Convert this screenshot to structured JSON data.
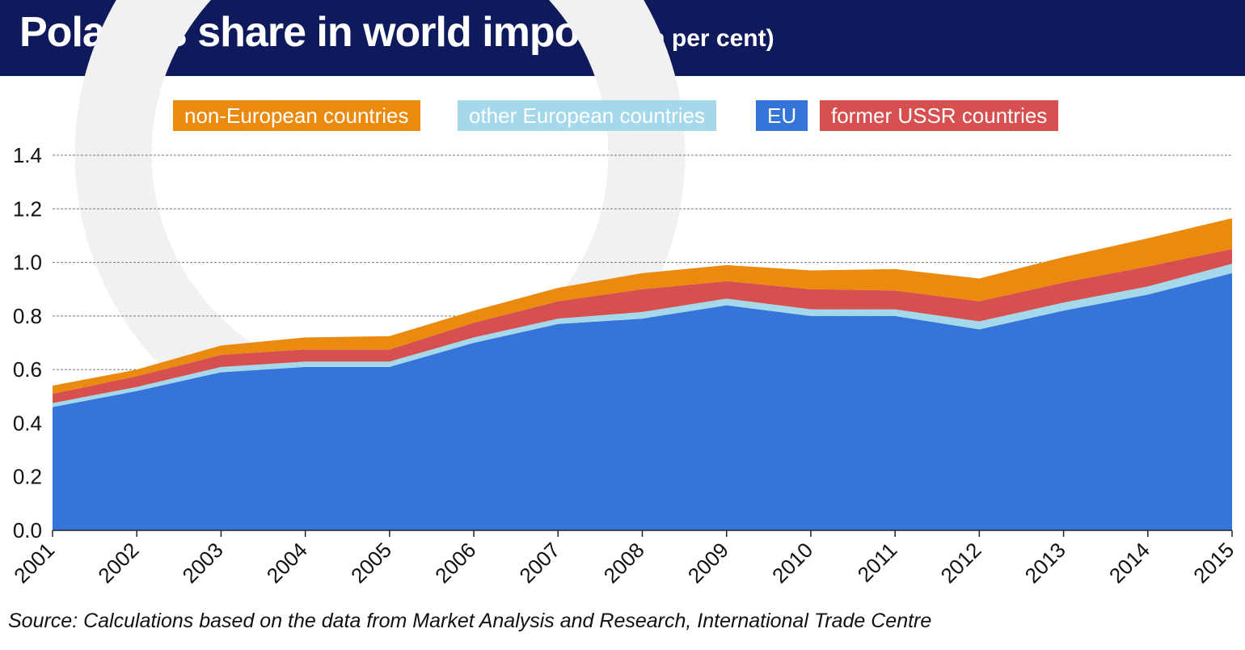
{
  "header": {
    "title": "Poland’s share in world imports",
    "subtitle": "(in per cent)"
  },
  "source_note": "Source: Calculations based on the data from Market Analysis and Research, International Trade Centre",
  "colors": {
    "header_bg": "#0e1a5c",
    "eu": "#3574d9",
    "other_europe": "#a4d8ea",
    "former_ussr": "#d5504e",
    "non_europe": "#ea8a0e"
  },
  "chart_data": {
    "type": "area",
    "stacked": true,
    "title": "Poland’s share in world imports",
    "subtitle": "(in per cent)",
    "xlabel": "",
    "ylabel": "",
    "ylim": [
      0,
      1.4
    ],
    "yticks": [
      "0.0",
      "0.2",
      "0.4",
      "0.6",
      "0.8",
      "1.0",
      "1.2",
      "1.4"
    ],
    "grid": true,
    "legend_position": "top",
    "categories": [
      "2001",
      "2002",
      "2003",
      "2004",
      "2005",
      "2006",
      "2007",
      "2008",
      "2009",
      "2010",
      "2011",
      "2012",
      "2013",
      "2014",
      "2015"
    ],
    "series": [
      {
        "name": "EU",
        "color": "#3574d9",
        "values": [
          0.46,
          0.52,
          0.59,
          0.61,
          0.61,
          0.7,
          0.77,
          0.79,
          0.84,
          0.8,
          0.8,
          0.75,
          0.82,
          0.88,
          0.96
        ]
      },
      {
        "name": "other European countries",
        "color": "#a4d8ea",
        "values": [
          0.015,
          0.015,
          0.02,
          0.02,
          0.02,
          0.02,
          0.02,
          0.025,
          0.025,
          0.025,
          0.025,
          0.03,
          0.03,
          0.03,
          0.035
        ]
      },
      {
        "name": "former USSR countries",
        "color": "#d5504e",
        "values": [
          0.035,
          0.04,
          0.045,
          0.045,
          0.045,
          0.055,
          0.065,
          0.085,
          0.065,
          0.075,
          0.07,
          0.075,
          0.075,
          0.075,
          0.055
        ]
      },
      {
        "name": "non-European countries",
        "color": "#ea8a0e",
        "values": [
          0.03,
          0.025,
          0.035,
          0.045,
          0.05,
          0.045,
          0.05,
          0.06,
          0.06,
          0.07,
          0.08,
          0.085,
          0.095,
          0.105,
          0.115
        ]
      }
    ],
    "legend": [
      {
        "label": "non-European countries",
        "color": "#ea8a0e"
      },
      {
        "label": "other European countries",
        "color": "#a4d8ea"
      },
      {
        "label": "EU",
        "color": "#3574d9"
      },
      {
        "label": "former USSR countries",
        "color": "#d5504e"
      }
    ]
  }
}
